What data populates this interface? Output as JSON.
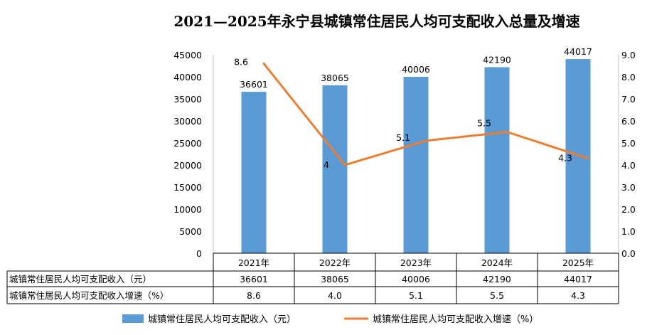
{
  "chart_data": {
    "type": "bar",
    "title": "2021—2025年永宁县城镇常住居民人均可支配收入总量及增速",
    "categories": [
      "2021年",
      "2022年",
      "2023年",
      "2024年",
      "2025年"
    ],
    "series": [
      {
        "name": "城镇常住居民人均可支配收入（元）",
        "type": "bar",
        "axis": "left",
        "color": "#5B9BD5",
        "values": [
          36601,
          38065,
          40006,
          42190,
          44017
        ]
      },
      {
        "name": "城镇常住居民人均可支配收入增速（%）",
        "type": "line",
        "axis": "right",
        "color": "#ED7D31",
        "values": [
          8.6,
          4.0,
          5.1,
          5.5,
          4.3
        ],
        "labels": [
          "8.6",
          "4",
          "5.1",
          "5.5",
          "4.3"
        ]
      }
    ],
    "y_left": {
      "min": 0,
      "max": 45000,
      "ticks": [
        "0",
        "5000",
        "10000",
        "15000",
        "20000",
        "25000",
        "30000",
        "35000",
        "40000",
        "45000"
      ]
    },
    "y_right": {
      "min": 0,
      "max": 9,
      "ticks": [
        "0.0",
        "1.0",
        "2.0",
        "3.0",
        "4.0",
        "5.0",
        "6.0",
        "7.0",
        "8.0",
        "9.0"
      ]
    },
    "grid": false,
    "legend": "bottom",
    "data_table": {
      "rows": [
        {
          "label": "城镇常住居民人均可支配收入（元）",
          "cells": [
            "36601",
            "38065",
            "40006",
            "42190",
            "44017"
          ]
        },
        {
          "label": "城镇常住居民人均可支配收入增速（%）",
          "cells": [
            "8.6",
            "4.0",
            "5.1",
            "5.5",
            "4.3"
          ]
        }
      ]
    },
    "legend_items": [
      {
        "label": "城镇常住居民人均可支配收入（元）",
        "kind": "bar",
        "color": "#5B9BD5"
      },
      {
        "label": "城镇常住居民人均可支配收入增速（%）",
        "kind": "line",
        "color": "#ED7D31"
      }
    ]
  }
}
